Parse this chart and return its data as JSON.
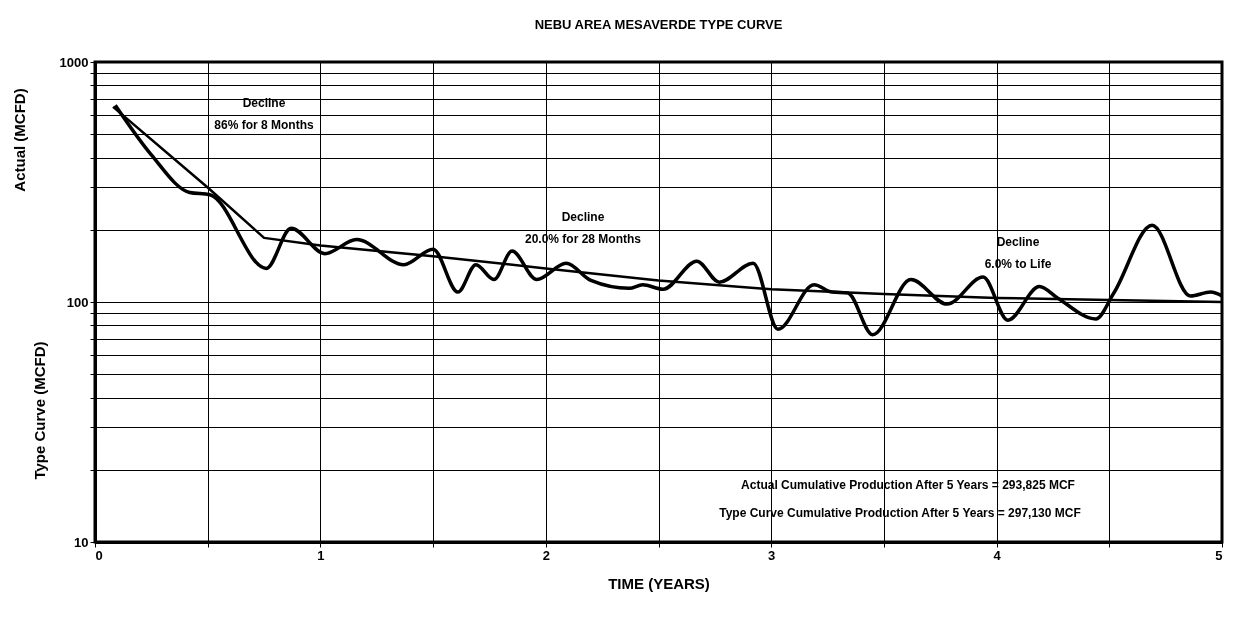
{
  "chart_data": {
    "type": "line",
    "title": "NEBU AREA MESAVERDE TYPE CURVE",
    "xlabel": "TIME (YEARS)",
    "ylabel": "Type Curve (MCFD)",
    "annotations": [
      "Actual (MCFD)",
      "Decline\n86% for 8 Months",
      "Decline\n20.0% for 28 Months",
      "Decline\n6.0% to Life",
      "Actual Cumulative Production After 5 Years = 293,825 MCF",
      "Type Curve Cumulative Production After 5 Years = 297,130 MCF"
    ],
    "log": true,
    "grid": true,
    "marker": "none",
    "line_style": "solid",
    "xlim": [
      0,
      5
    ],
    "ylim": [
      10,
      1000
    ],
    "xticks": [
      0,
      {
        "value": 0.5,
        "label": null
      },
      1,
      {
        "value": 1.5,
        "label": null
      },
      2,
      {
        "value": 2.5,
        "label": null
      },
      3,
      {
        "value": 3.5,
        "label": null
      },
      4,
      {
        "value": 4.5,
        "label": null
      },
      5
    ],
    "yticks": [
      10,
      {
        "value": 20,
        "label": null
      },
      {
        "value": 30,
        "label": null
      },
      {
        "value": 40,
        "label": null
      },
      {
        "value": 50,
        "label": null
      },
      {
        "value": 60,
        "label": null
      },
      {
        "value": 70,
        "label": null
      },
      {
        "value": 80,
        "label": null
      },
      {
        "value": 90,
        "label": null
      },
      100,
      {
        "value": 200,
        "label": null
      },
      {
        "value": 300,
        "label": null
      },
      {
        "value": 400,
        "label": null
      },
      {
        "value": 500,
        "label": null
      },
      {
        "value": 600,
        "label": null
      },
      {
        "value": 700,
        "label": null
      },
      {
        "value": 800,
        "label": null
      },
      {
        "value": 900,
        "label": null
      },
      1000
    ],
    "series": [
      {
        "color": "#000000",
        "x": [
          0.09,
          0.25,
          0.42,
          0.51,
          0.76,
          0.87,
          1.02,
          1.16,
          1.37,
          1.5,
          1.61,
          1.69,
          1.77,
          1.85,
          1.96,
          2.09,
          2.2,
          2.37,
          2.43,
          2.52,
          2.67,
          2.77,
          2.92,
          3.03,
          3.19,
          3.27,
          3.34,
          3.45,
          3.62,
          3.78,
          3.94,
          4.05,
          4.19,
          4.27,
          4.44,
          4.52,
          4.69,
          4.86,
          4.95,
          5.0
        ],
        "values": [
          660,
          410,
          286,
          280,
          138,
          203,
          159,
          182,
          143,
          166,
          110,
          143,
          124,
          163,
          124,
          145,
          123,
          114,
          118,
          113,
          148,
          121,
          145,
          77,
          118,
          110,
          109,
          73,
          124,
          98,
          127,
          84,
          116,
          104,
          85,
          109,
          209,
          106,
          110,
          106
        ]
      },
      {
        "color": "#000000",
        "x": [
          0.08,
          0.5,
          0.75,
          1,
          1.5,
          2,
          2.5,
          3,
          3.5,
          4,
          4.5,
          5
        ],
        "values": [
          650,
          300,
          185,
          172,
          155,
          138,
          123,
          113,
          108,
          104,
          102,
          100
        ]
      }
    ]
  }
}
